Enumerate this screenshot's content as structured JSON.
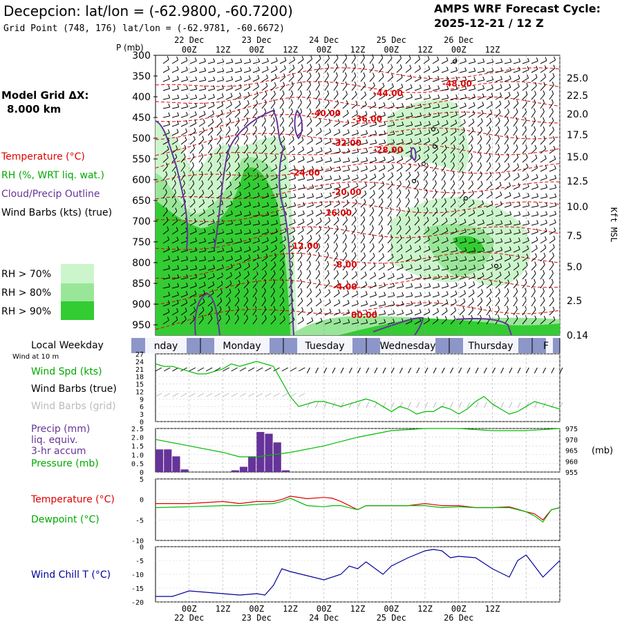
{
  "header": {
    "title": "Decepcion:  lat/lon = (-62.9800, -60.7200)",
    "subtitle": "Grid Point (748, 176) lat/lon = (-62.9781, -60.6672)",
    "cycle_label": "AMPS WRF Forecast Cycle:",
    "cycle_value": "2025-12-21 / 12  Z"
  },
  "legend": {
    "model_grid": "Model Grid ΔX:",
    "model_grid_value": "8.000 km",
    "temperature": "Temperature (°C)",
    "rh": "RH (%, WRT liq. wat.)",
    "cloud": "Cloud/Precip Outline",
    "wind": "Wind Barbs (kts) (true)",
    "rh70": "RH > 70%",
    "rh80": "RH > 80%",
    "rh90": "RH > 90%",
    "colors": {
      "temp": "#e00000",
      "rh70": "#ccf5cc",
      "rh80": "#99e699",
      "rh90": "#33cc33",
      "cloud": "#663399"
    }
  },
  "time_axis": {
    "top_dates": [
      "22 Dec",
      "23 Dec",
      "24 Dec",
      "25 Dec",
      "26 Dec"
    ],
    "hours": [
      "00Z",
      "12Z",
      "00Z",
      "12Z",
      "00Z",
      "12Z",
      "00Z",
      "12Z",
      "00Z",
      "12Z"
    ],
    "bottom_hours": [
      "00Z",
      "12Z",
      "00Z",
      "12Z",
      "00Z",
      "12Z",
      "00Z",
      "12Z",
      "00Z",
      "12Z"
    ],
    "bottom_dates": [
      "22 Dec",
      "23 Dec",
      "24 Dec",
      "25 Dec",
      "26 Dec"
    ]
  },
  "sounding": {
    "p_label": "P (mb)",
    "pressure_ticks": [
      "300",
      "350",
      "400",
      "450",
      "500",
      "550",
      "600",
      "650",
      "700",
      "750",
      "800",
      "850",
      "900",
      "950"
    ],
    "kft_ticks": [
      "25.0",
      "22.5",
      "20.0",
      "17.5",
      "15.0",
      "12.5",
      "10.0",
      "7.5",
      "5.0",
      "2.5",
      "0.14"
    ],
    "kft_label": "Kft MSL",
    "isotherm_labels": [
      "-48.00",
      "-44.00",
      "-40.00",
      "-36.00",
      "-32.00",
      "-28.00",
      "-24.00",
      "-20.00",
      "-16.00",
      "-12.00",
      "-8.00",
      "-4.00",
      "00.00"
    ]
  },
  "weekday_bar": {
    "label": "Local Weekday",
    "days": [
      "nday",
      "Monday",
      "Tuesday",
      "Wednesday",
      "Thursday",
      "F"
    ]
  },
  "panels": {
    "wind_at": "Wind at 10 m",
    "wind_spd": "Wind Spd (kts)",
    "barbs_true": "Wind Barbs (true)",
    "barbs_grid": "Wind Barbs (grid)",
    "wind_ticks": [
      "27",
      "24",
      "21",
      "18",
      "15",
      "12",
      "9",
      "6",
      "3",
      "0"
    ],
    "precip": "Precip (mm)",
    "precip2": "liq. equiv.",
    "precip3": "3-hr accum",
    "pressure": "Pressure (mb)",
    "precip_ticks": [
      "2.5",
      "2.0",
      "1.5",
      "1.0",
      "0.5",
      "0"
    ],
    "pressure_ticks": [
      "975",
      "970",
      "965",
      "960",
      "955"
    ],
    "mb_label": "(mb)",
    "temperature": "Temperature (°C)",
    "dewpoint": "Dewpoint (°C)",
    "temp_ticks": [
      "5",
      "0",
      "-5",
      "-10"
    ],
    "windchill": "Wind Chill T (°C)",
    "wc_ticks": [
      "0",
      "-5",
      "-10",
      "-15",
      "-20"
    ]
  },
  "chart_data": [
    {
      "type": "line",
      "title": "Wind Spd (kts)",
      "ylim": [
        0,
        27
      ],
      "x_hours": [
        -12,
        -9,
        -6,
        -3,
        0,
        3,
        6,
        9,
        12,
        15,
        18,
        21,
        24,
        27,
        30,
        33,
        36,
        39,
        42,
        45,
        48,
        51,
        54,
        57,
        60,
        63,
        66,
        69,
        72,
        75,
        78,
        81,
        84,
        87,
        90,
        93,
        96,
        99,
        102,
        105,
        108,
        111,
        114,
        117,
        120,
        123,
        126,
        129,
        132
      ],
      "series": [
        {
          "name": "Wind Spd (kts)",
          "color": "#00bb00",
          "values": [
            23,
            22,
            22,
            21,
            20,
            19,
            19,
            20,
            21,
            23,
            22,
            23,
            24,
            23,
            22,
            16,
            10,
            6,
            7,
            8,
            8,
            7,
            6,
            7,
            8,
            9,
            8,
            6,
            4,
            6,
            5,
            3,
            4,
            4,
            6,
            5,
            3,
            5,
            8,
            10,
            7,
            5,
            3,
            4,
            6,
            8,
            7,
            6,
            5
          ]
        }
      ]
    },
    {
      "type": "bar",
      "title": "Precip (mm) / Pressure (mb)",
      "precip_ylim": [
        0,
        2.5
      ],
      "precip_x_hours": [
        -12,
        -9,
        -6,
        -3,
        0,
        3,
        6,
        9,
        12,
        15,
        18,
        21,
        24,
        27,
        30,
        33,
        36,
        39
      ],
      "precip_values": [
        1.3,
        1.3,
        0.9,
        0.15,
        0,
        0,
        0,
        0,
        0,
        0.1,
        0.3,
        0.9,
        2.3,
        2.2,
        1.7,
        0.1,
        0,
        0
      ],
      "pressure_ylim": [
        955,
        975
      ],
      "pressure_x_hours": [
        -12,
        0,
        12,
        18,
        24,
        36,
        48,
        60,
        72,
        84,
        96,
        108,
        120,
        132
      ],
      "pressure_values": [
        970,
        967,
        964,
        962,
        962,
        964,
        967,
        971,
        974,
        975,
        975,
        974,
        974,
        975
      ]
    },
    {
      "type": "line",
      "title": "Temperature / Dewpoint (°C)",
      "ylim": [
        -10,
        5
      ],
      "x_hours": [
        -12,
        0,
        12,
        18,
        24,
        30,
        33,
        36,
        42,
        48,
        51,
        54,
        60,
        63,
        66,
        72,
        78,
        84,
        90,
        96,
        102,
        108,
        114,
        120,
        123,
        126,
        129,
        132
      ],
      "series": [
        {
          "name": "Temperature (°C)",
          "color": "#e00000",
          "values": [
            -1.0,
            -1.0,
            -0.5,
            -1.0,
            -0.5,
            -0.5,
            0,
            0.8,
            0.2,
            0.5,
            0.3,
            -0.5,
            -2.5,
            -1.5,
            -1.5,
            -1.5,
            -1.5,
            -1.0,
            -1.5,
            -1.5,
            -2.0,
            -2.0,
            -1.8,
            -3.0,
            -3.5,
            -5.0,
            -2.5,
            -2.0
          ]
        },
        {
          "name": "Dewpoint (°C)",
          "color": "#00bb00",
          "values": [
            -2.0,
            -1.8,
            -1.5,
            -1.5,
            -1.2,
            -1.0,
            -0.5,
            0.3,
            -1.5,
            -1.8,
            -1.5,
            -1.5,
            -2.5,
            -1.5,
            -1.5,
            -1.5,
            -1.5,
            -1.5,
            -2.0,
            -1.8,
            -2.0,
            -2.0,
            -2.0,
            -3.0,
            -4.0,
            -5.5,
            -2.5,
            -2.0
          ]
        }
      ]
    },
    {
      "type": "line",
      "title": "Wind Chill T (°C)",
      "ylim": [
        -20,
        0
      ],
      "x_hours": [
        -12,
        -9,
        -6,
        0,
        6,
        12,
        18,
        24,
        27,
        30,
        33,
        36,
        42,
        48,
        54,
        57,
        60,
        63,
        69,
        72,
        78,
        84,
        87,
        90,
        93,
        96,
        102,
        108,
        114,
        117,
        120,
        126,
        129,
        132
      ],
      "series": [
        {
          "name": "Wind Chill T (°C)",
          "color": "#000099",
          "values": [
            -18,
            -18,
            -18,
            -16,
            -16.5,
            -17,
            -17.5,
            -17,
            -17.5,
            -14,
            -8,
            -9,
            -10.5,
            -12,
            -10,
            -7,
            -8,
            -5.5,
            -10,
            -7,
            -4,
            -1.5,
            -1,
            -1.5,
            -4,
            -3.5,
            -4,
            -8,
            -11,
            -5,
            -3,
            -11,
            -8,
            -5
          ]
        }
      ]
    }
  ]
}
